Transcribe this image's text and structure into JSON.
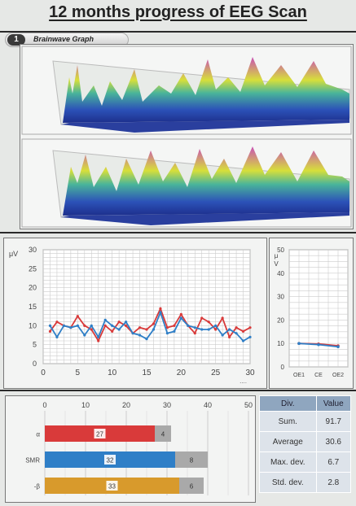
{
  "page": {
    "title": "12 months progress of EEG Scan"
  },
  "section": {
    "number": "1",
    "label": "Brainwave Graph"
  },
  "colors": {
    "red": "#d93a3a",
    "blue": "#2f7fc7",
    "orange": "#d89a2c",
    "grey": "#a9a9a9"
  },
  "chart_data": [
    {
      "type": "line",
      "ylabel": "μV",
      "ylim": [
        0,
        30
      ],
      "xlim": [
        0,
        30
      ],
      "x_ticks": [
        0,
        5,
        10,
        15,
        20,
        25,
        30
      ],
      "y_ticks": [
        0,
        5,
        10,
        15,
        20,
        25,
        30
      ],
      "x_tick_labels": [
        "0",
        "5",
        "10",
        "15",
        "20",
        "25",
        "30"
      ],
      "y_tick_labels": [
        "0",
        "5",
        "10",
        "15",
        "20",
        "25",
        "30"
      ],
      "x_extra_label": "....",
      "grid": true,
      "x": [
        1,
        2,
        3,
        4,
        5,
        6,
        7,
        8,
        9,
        10,
        11,
        12,
        13,
        14,
        15,
        16,
        17,
        18,
        19,
        20,
        21,
        22,
        23,
        24,
        25,
        26,
        27,
        28,
        29,
        30
      ],
      "series": [
        {
          "color": "#d93a3a",
          "values": [
            8.5,
            11,
            10,
            9.5,
            12.5,
            10,
            9,
            6,
            10,
            8.5,
            11,
            10,
            8,
            9.5,
            9,
            10.5,
            14.5,
            9.5,
            10,
            13,
            10,
            8,
            12,
            11,
            9,
            12,
            7,
            9.5,
            8.5,
            9.5
          ]
        },
        {
          "color": "#2f7fc7",
          "values": [
            10,
            7,
            10,
            9.5,
            10,
            7.5,
            10,
            7,
            11.5,
            10,
            9,
            11,
            8,
            7.5,
            6.5,
            9,
            13.5,
            8,
            8.5,
            12,
            10,
            9.5,
            9,
            9,
            10,
            7.5,
            9,
            8,
            6,
            7
          ]
        }
      ]
    },
    {
      "type": "line",
      "ylabel": "μ V",
      "ylim": [
        0,
        50
      ],
      "categories": [
        "OE1",
        "CE",
        "OE2"
      ],
      "y_ticks": [
        0,
        10,
        20,
        30,
        40,
        50
      ],
      "y_tick_labels": [
        "0",
        "10",
        "20",
        "30",
        "40",
        "50"
      ],
      "grid": true,
      "series": [
        {
          "color": "#d93a3a",
          "values": [
            10,
            9.8,
            9
          ]
        },
        {
          "color": "#2f7fc7",
          "values": [
            10,
            9.5,
            8.6
          ]
        }
      ]
    },
    {
      "type": "bar",
      "orientation": "horizontal",
      "stacked": true,
      "xlim": [
        0,
        50
      ],
      "x_ticks": [
        0,
        10,
        20,
        30,
        40,
        50
      ],
      "x_tick_labels": [
        "0",
        "10",
        "20",
        "30",
        "40",
        "50"
      ],
      "categories": [
        "α",
        "SMR",
        "-β"
      ],
      "bars": [
        {
          "main": 27,
          "rest": 4,
          "main_label": "27",
          "rest_label": "4",
          "color": "#d93a3a"
        },
        {
          "main": 32,
          "rest": 8,
          "main_label": "32",
          "rest_label": "8",
          "color": "#2f7fc7"
        },
        {
          "main": 33,
          "rest": 6,
          "main_label": "33",
          "rest_label": "6",
          "color": "#d89a2c"
        }
      ]
    },
    {
      "type": "table",
      "columns": [
        "Div.",
        "Value"
      ],
      "rows": [
        [
          "Sum.",
          "91.7"
        ],
        [
          "Average",
          "30.6"
        ],
        [
          "Max. dev.",
          "6.7"
        ],
        [
          "Std. dev.",
          "2.8"
        ]
      ]
    }
  ]
}
